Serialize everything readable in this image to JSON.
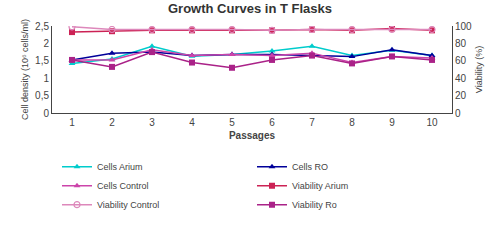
{
  "chart_data": {
    "type": "line",
    "title": "Growth Curves in T Flasks",
    "x_label": "Passages",
    "y_label": "Cell density (10⁶ cells/ml)",
    "y2_label": "Viability (%)",
    "x": [
      1,
      2,
      3,
      4,
      5,
      6,
      7,
      8,
      9,
      10
    ],
    "xlim": [
      0.5,
      10.5
    ],
    "xticks": [
      1,
      2,
      3,
      4,
      5,
      6,
      7,
      8,
      9,
      10
    ],
    "ylim": [
      0,
      2.5
    ],
    "yticks": [
      0,
      {
        "value": 0.5,
        "label": "0,5"
      },
      1,
      {
        "value": 1.5,
        "label": "1,5"
      },
      2,
      {
        "value": 2.5,
        "label": "2,5"
      }
    ],
    "y2lim": [
      0,
      100
    ],
    "y2ticks": [
      0,
      20,
      40,
      60,
      80,
      100
    ],
    "grid": false,
    "legend": "bottom",
    "series": [
      {
        "name": "Cells Arium",
        "color": "#00CCCC",
        "marker": "triangle-up",
        "values": [
          1.42,
          1.55,
          1.92,
          1.63,
          1.68,
          1.78,
          1.92,
          1.65,
          1.8,
          1.65
        ]
      },
      {
        "name": "Cells RO",
        "color": "#000099",
        "marker": "triangle-up",
        "values": [
          1.52,
          1.72,
          1.75,
          1.65,
          1.68,
          1.68,
          1.65,
          1.62,
          1.82,
          1.65
        ]
      },
      {
        "name": "Cells Control",
        "color": "#CC44AA",
        "marker": "triangle-up",
        "values": [
          1.52,
          1.52,
          1.82,
          1.65,
          1.68,
          1.65,
          1.72,
          1.45,
          1.62,
          1.58
        ]
      },
      {
        "name": "Viability Arium",
        "color": "#CC2255",
        "marker": "square",
        "axis": "y2",
        "values": [
          93,
          94,
          95,
          95,
          95,
          95,
          96,
          95,
          97,
          95
        ]
      },
      {
        "name": "Viability Control",
        "color": "#DD88BB",
        "marker": "circle-open",
        "axis": "y2",
        "values": [
          99,
          96,
          96,
          96,
          96,
          95,
          96,
          96,
          96,
          96
        ]
      },
      {
        "name": "Viability Ro",
        "color": "#AA2288",
        "marker": "square",
        "axis": "y2",
        "values": [
          61,
          53,
          70,
          58,
          52,
          61,
          66,
          57,
          65,
          61
        ]
      }
    ]
  }
}
